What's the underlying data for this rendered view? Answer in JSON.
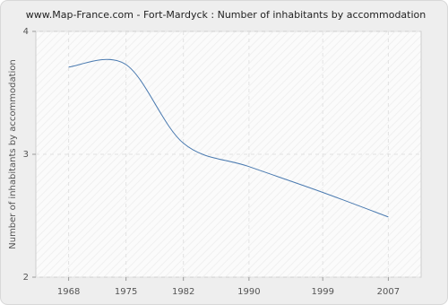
{
  "chart_data": {
    "type": "line",
    "title": "www.Map-France.com - Fort-Mardyck : Number of inhabitants by accommodation",
    "y_label": "Number of inhabitants by accommodation",
    "x": [
      1968,
      1975,
      1982,
      1990,
      1999,
      2007
    ],
    "series": [
      {
        "name": "Fort-Mardyck",
        "color": "#4a7ab0",
        "values": [
          3.71,
          3.73,
          3.09,
          2.9,
          2.69,
          2.49
        ]
      }
    ],
    "xlim": [
      1964,
      2011
    ],
    "xticks": [
      1968,
      1975,
      1982,
      1990,
      1999,
      2007
    ],
    "ylim": [
      2,
      4
    ],
    "yticks": [
      2,
      3,
      4
    ],
    "grid": true,
    "smooth": true
  }
}
